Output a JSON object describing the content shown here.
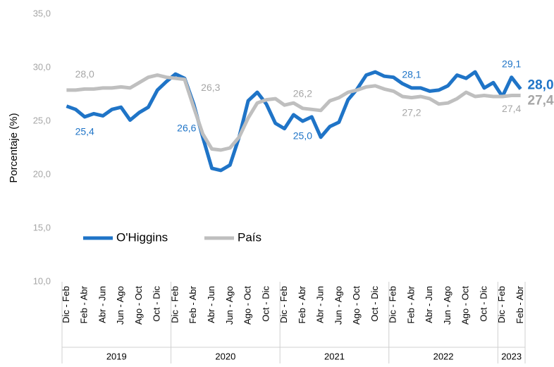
{
  "chart_data": {
    "type": "line",
    "y_label": "Porcentaje (%)",
    "categories": [
      "Dic - Feb",
      null,
      "Feb - Abr",
      null,
      "Abr - Jun",
      null,
      "Jun - Ago",
      null,
      "Ago - Oct",
      null,
      "Oct - Dic",
      null,
      "Dic - Feb",
      null,
      "Feb - Abr",
      null,
      "Abr - Jun",
      null,
      "Jun - Ago",
      null,
      "Ago - Oct",
      null,
      "Oct - Dic",
      null,
      "Dic - Feb",
      null,
      "Feb - Abr",
      null,
      "Abr - Jun",
      null,
      "Jun - Ago",
      null,
      "Ago - Oct",
      null,
      "Oct - Dic",
      null,
      "Dic - Feb",
      null,
      "Feb - Abr",
      null,
      "Abr - Jun",
      null,
      "Jun - Ago",
      null,
      "Ago - Oct",
      null,
      "Oct - Dic",
      null,
      "Dic - Feb",
      null,
      "Feb - Abr"
    ],
    "years": [
      "2019",
      "2020",
      "2021",
      "2022",
      "2023"
    ],
    "series": [
      {
        "name": "O'Higgins",
        "color": "#1f74c7",
        "values": [
          26.4,
          26.1,
          25.4,
          25.7,
          25.5,
          26.1,
          26.3,
          25.1,
          25.8,
          26.3,
          27.9,
          28.7,
          29.4,
          29.0,
          26.6,
          23.5,
          20.6,
          20.4,
          20.9,
          23.5,
          26.9,
          27.7,
          26.6,
          24.8,
          24.3,
          25.6,
          25.0,
          25.4,
          23.5,
          24.5,
          24.9,
          27.0,
          28.0,
          29.3,
          29.6,
          29.2,
          29.1,
          28.5,
          28.1,
          28.1,
          27.8,
          27.9,
          28.3,
          29.3,
          29.0,
          29.6,
          28.1,
          28.6,
          27.3,
          29.1,
          28.0
        ],
        "value_labels": [
          null,
          null,
          "25,4",
          null,
          null,
          null,
          null,
          null,
          null,
          null,
          null,
          null,
          null,
          null,
          "26,6",
          null,
          null,
          null,
          null,
          null,
          null,
          null,
          null,
          null,
          null,
          null,
          "25,0",
          null,
          null,
          null,
          null,
          null,
          null,
          null,
          null,
          null,
          null,
          null,
          "28,1",
          null,
          null,
          null,
          null,
          null,
          null,
          null,
          null,
          null,
          null,
          "29,1",
          "28,0"
        ]
      },
      {
        "name": "País",
        "color": "#bfbfbf",
        "values": [
          27.9,
          27.9,
          28.0,
          28.0,
          28.1,
          28.1,
          28.2,
          28.1,
          28.6,
          29.1,
          29.3,
          29.1,
          29.0,
          28.9,
          26.3,
          23.8,
          22.4,
          22.3,
          22.5,
          23.5,
          25.3,
          26.7,
          27.0,
          27.1,
          26.5,
          26.7,
          26.2,
          26.1,
          26.0,
          26.9,
          27.2,
          27.7,
          27.9,
          28.2,
          28.3,
          28.0,
          27.8,
          27.3,
          27.2,
          27.3,
          27.1,
          26.6,
          26.7,
          27.1,
          27.7,
          27.3,
          27.4,
          27.3,
          27.3,
          27.4,
          27.4
        ],
        "value_labels": [
          null,
          null,
          "28,0",
          null,
          null,
          null,
          null,
          null,
          null,
          null,
          null,
          null,
          null,
          null,
          "26,3",
          null,
          null,
          null,
          null,
          null,
          null,
          null,
          null,
          null,
          null,
          null,
          "26,2",
          null,
          null,
          null,
          null,
          null,
          null,
          null,
          null,
          null,
          null,
          null,
          "27,2",
          null,
          null,
          null,
          null,
          null,
          null,
          null,
          null,
          null,
          null,
          "27,4",
          "27,4"
        ]
      }
    ],
    "ylim": [
      10,
      35
    ],
    "yticks": [
      {
        "value": 10,
        "label": "10,0"
      },
      {
        "value": 15,
        "label": "15,0"
      },
      {
        "value": 20,
        "label": "20,0"
      },
      {
        "value": 25,
        "label": "25,0"
      },
      {
        "value": 30,
        "label": "30,0"
      },
      {
        "value": 35,
        "label": "35,0"
      }
    ],
    "grid": false
  }
}
